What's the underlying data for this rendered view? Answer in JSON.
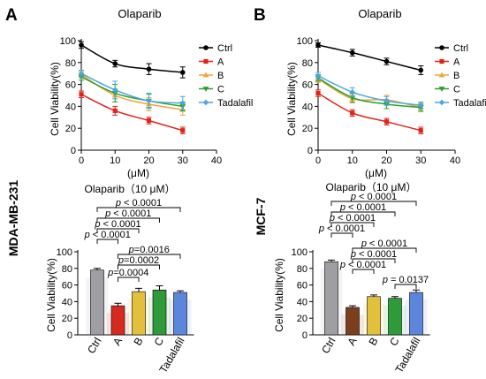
{
  "panel_labels": [
    "A",
    "B"
  ],
  "row_labels": [
    "MDA-MB-231",
    "MCF-7"
  ],
  "colors": {
    "Ctrl": "#000000",
    "A": "#e2231a",
    "B": "#f0a63a",
    "C": "#2ca02c",
    "Tadalafil": "#4aa6e0",
    "bar_Ctrl": "#9e9ea3",
    "bar_A_left": "#d52b1e",
    "bar_A_right": "#7b3f1e",
    "bar_B": "#e3c03c",
    "bar_C": "#2f9a3a",
    "bar_Tadalafil": "#5b86dc"
  },
  "chart_data": [
    {
      "type": "line",
      "title": "Olaparib",
      "xlabel": "(μM)",
      "ylabel": "Cell Viability(%)",
      "xlim": [
        0,
        40
      ],
      "ylim": [
        0,
        100
      ],
      "xticks": [
        "0",
        "10",
        "20",
        "30",
        "40"
      ],
      "yticks": [
        "0",
        "20",
        "40",
        "60",
        "80",
        "100"
      ],
      "legend": "right",
      "x": [
        0,
        10,
        20,
        30
      ],
      "series": [
        {
          "name": "Ctrl",
          "values": [
            96,
            79,
            74,
            71
          ],
          "err": [
            3,
            3,
            5,
            5
          ]
        },
        {
          "name": "A",
          "values": [
            51,
            36,
            27,
            18
          ],
          "err": [
            3,
            4,
            3,
            3
          ]
        },
        {
          "name": "B",
          "values": [
            69,
            50,
            42,
            37
          ],
          "err": [
            3,
            6,
            6,
            5
          ]
        },
        {
          "name": "C",
          "values": [
            67,
            52,
            45,
            40
          ],
          "err": [
            3,
            8,
            6,
            4
          ]
        },
        {
          "name": "Tadalafil",
          "values": [
            70,
            55,
            45,
            43
          ],
          "err": [
            3,
            8,
            7,
            6
          ]
        }
      ]
    },
    {
      "type": "line",
      "title": "Olaparib",
      "xlabel": "(μM)",
      "ylabel": "Cell Viability(%)",
      "xlim": [
        0,
        40
      ],
      "ylim": [
        0,
        100
      ],
      "xticks": [
        "0",
        "10",
        "20",
        "30",
        "40"
      ],
      "yticks": [
        "0",
        "20",
        "40",
        "60",
        "80",
        "100"
      ],
      "legend": "right",
      "x": [
        0,
        10,
        20,
        30
      ],
      "series": [
        {
          "name": "Ctrl",
          "values": [
            96,
            89,
            81,
            73
          ],
          "err": [
            2,
            3,
            3,
            4
          ]
        },
        {
          "name": "A",
          "values": [
            52,
            34,
            26,
            18
          ],
          "err": [
            3,
            3,
            3,
            3
          ]
        },
        {
          "name": "B",
          "values": [
            65,
            47,
            46,
            39
          ],
          "err": [
            3,
            4,
            4,
            4
          ]
        },
        {
          "name": "C",
          "values": [
            66,
            48,
            42,
            39
          ],
          "err": [
            3,
            4,
            4,
            3
          ]
        },
        {
          "name": "Tadalafil",
          "values": [
            68,
            53,
            45,
            41
          ],
          "err": [
            3,
            4,
            4,
            3
          ]
        }
      ]
    },
    {
      "type": "bar",
      "title": "Olaparib（10 μM）",
      "ylabel": "Cell Viability(%)",
      "ylim": [
        0,
        100
      ],
      "yticks": [
        "0",
        "20",
        "40",
        "60",
        "80",
        "100"
      ],
      "categories": [
        "Ctrl",
        "A",
        "B",
        "C",
        "Tadalafil"
      ],
      "values": [
        78,
        35,
        52,
        54,
        51
      ],
      "err": [
        2,
        3,
        4,
        5,
        2
      ],
      "annotations": [
        {
          "text": "p < 0.0001",
          "from": "Ctrl",
          "to": "Tadalafil"
        },
        {
          "text": "p < 0.0001",
          "from": "Ctrl",
          "to": "C"
        },
        {
          "text": "p < 0.0001",
          "from": "Ctrl",
          "to": "B"
        },
        {
          "text": "p < 0.0001",
          "from": "Ctrl",
          "to": "A"
        },
        {
          "text": "p=0.0016",
          "from": "A",
          "to": "Tadalafil"
        },
        {
          "text": "p=0.0002",
          "from": "A",
          "to": "C"
        },
        {
          "text": "p=0.0004",
          "from": "A",
          "to": "B"
        }
      ]
    },
    {
      "type": "bar",
      "title": "Olaparib（10 μM）",
      "ylabel": "Cell Viability(%)",
      "ylim": [
        0,
        100
      ],
      "yticks": [
        "0",
        "20",
        "40",
        "60",
        "80",
        "100"
      ],
      "categories": [
        "Ctrl",
        "A",
        "B",
        "C",
        "Tadalafil"
      ],
      "values": [
        88,
        33,
        46,
        44,
        51
      ],
      "err": [
        2,
        2,
        2,
        2,
        3
      ],
      "annotations": [
        {
          "text": "p < 0.0001",
          "from": "Ctrl",
          "to": "Tadalafil"
        },
        {
          "text": "p < 0.0001",
          "from": "Ctrl",
          "to": "C"
        },
        {
          "text": "p < 0.0001",
          "from": "Ctrl",
          "to": "B"
        },
        {
          "text": "p < 0.0001",
          "from": "Ctrl",
          "to": "A"
        },
        {
          "text": "p < 0.0001",
          "from": "A",
          "to": "Tadalafil"
        },
        {
          "text": "p < 0.0001",
          "from": "A",
          "to": "C"
        },
        {
          "text": "p < 0.0001",
          "from": "A",
          "to": "B"
        },
        {
          "text": "p = 0.0137",
          "from": "C",
          "to": "Tadalafil"
        }
      ]
    }
  ]
}
